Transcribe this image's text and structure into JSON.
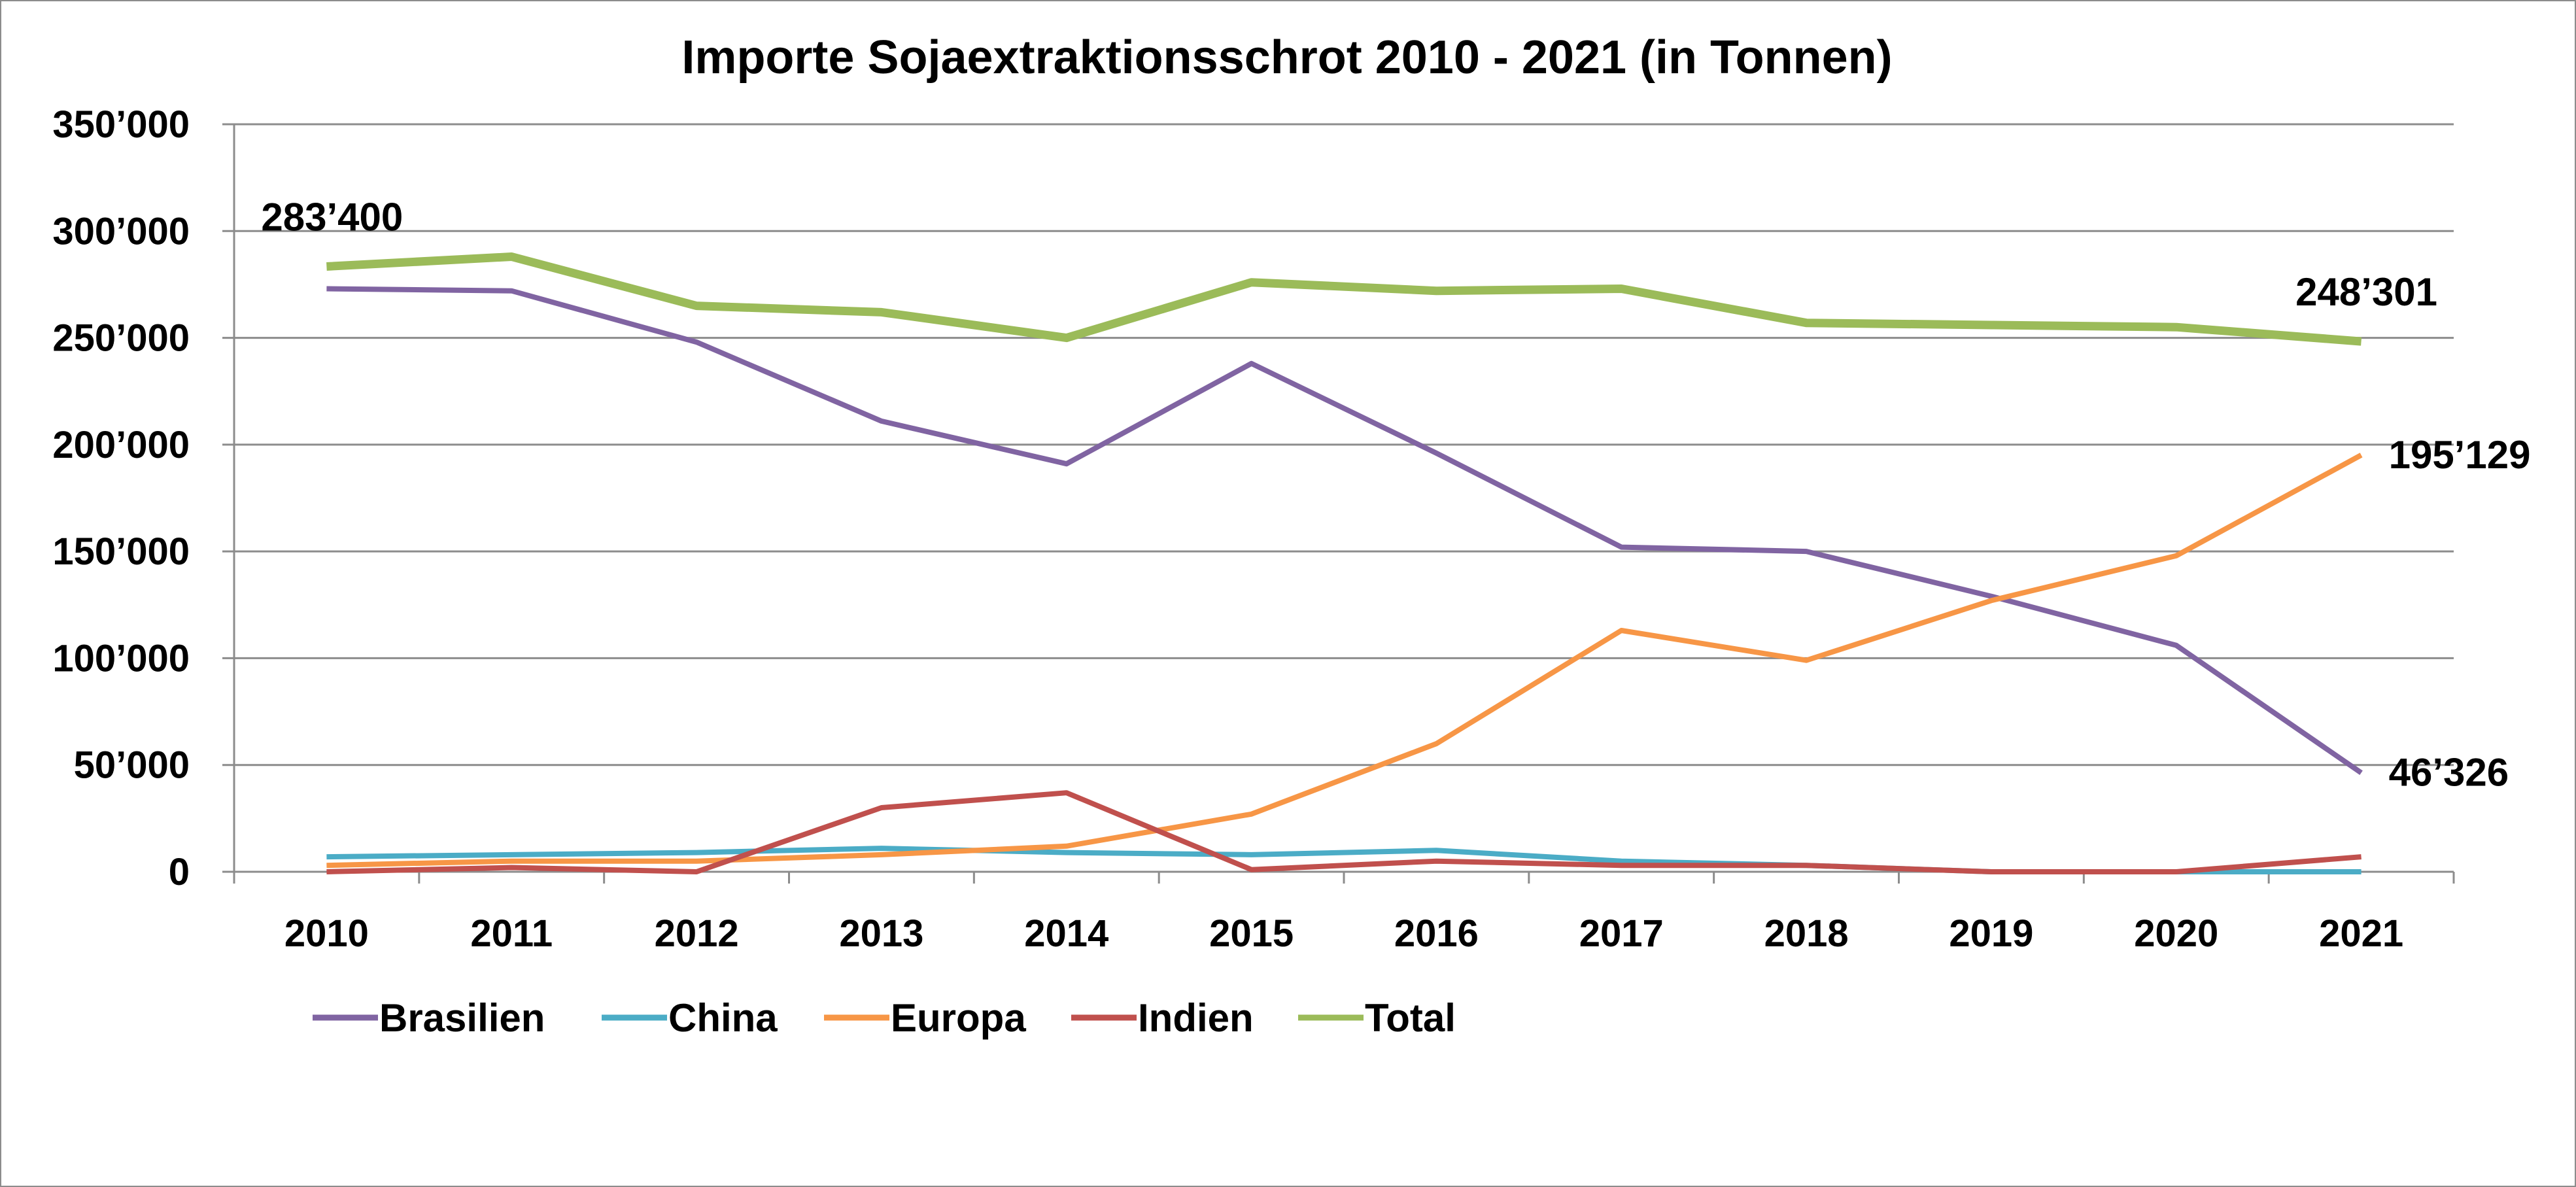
{
  "chart_data": {
    "type": "line",
    "title": "Importe Sojaextraktionsschrot 2010 - 2021 (in Tonnen)",
    "xlabel": "",
    "ylabel": "",
    "x": [
      "2010",
      "2011",
      "2012",
      "2013",
      "2014",
      "2015",
      "2016",
      "2017",
      "2018",
      "2019",
      "2020",
      "2021"
    ],
    "ylim": [
      0,
      350000
    ],
    "yticks": [
      0,
      50000,
      100000,
      150000,
      200000,
      250000,
      300000,
      350000
    ],
    "ytick_labels": [
      "0",
      "50’000",
      "100’000",
      "150’000",
      "200’000",
      "250’000",
      "300’000",
      "350’000"
    ],
    "grid": true,
    "legend_position": "bottom-left",
    "series": [
      {
        "name": "Brasilien",
        "color": "#8064A2",
        "values": [
          273000,
          272000,
          248000,
          211000,
          191000,
          238000,
          196000,
          152000,
          150000,
          129000,
          106000,
          46326
        ]
      },
      {
        "name": "China",
        "color": "#4BACC6",
        "values": [
          7000,
          8000,
          9000,
          11000,
          9000,
          8000,
          10000,
          5000,
          3000,
          0,
          0,
          0
        ]
      },
      {
        "name": "Europa",
        "color": "#F79646",
        "values": [
          3000,
          5000,
          5000,
          8000,
          12000,
          27000,
          60000,
          113000,
          99000,
          127000,
          148000,
          195129
        ]
      },
      {
        "name": "Indien",
        "color": "#C0504D",
        "values": [
          0,
          2000,
          0,
          30000,
          37000,
          1000,
          5000,
          3000,
          3000,
          0,
          0,
          7000
        ]
      },
      {
        "name": "Total",
        "color": "#9BBB59",
        "values": [
          283400,
          288000,
          265000,
          262000,
          250000,
          276000,
          272000,
          273000,
          257000,
          256000,
          255000,
          248301
        ]
      }
    ],
    "data_labels": [
      {
        "series": "Total",
        "x": "2010",
        "text": "283’400",
        "placement": "above"
      },
      {
        "series": "Total",
        "x": "2021",
        "text": "248’301",
        "placement": "above"
      },
      {
        "series": "Europa",
        "x": "2021",
        "text": "195’129",
        "placement": "right"
      },
      {
        "series": "Brasilien",
        "x": "2021",
        "text": "46’326",
        "placement": "right"
      }
    ],
    "colors": {
      "grid": "#8c8c8c",
      "axis": "#8c8c8c",
      "border": "#8c8c8c"
    }
  }
}
